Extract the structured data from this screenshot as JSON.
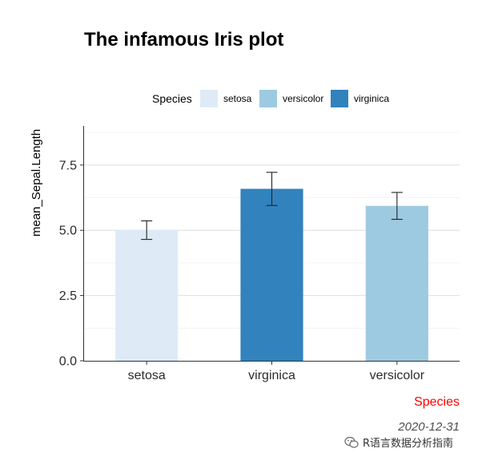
{
  "chart_data": {
    "type": "bar",
    "title": "The infamous Iris plot",
    "xlabel": "Species",
    "ylabel": "mean_Sepal.Length",
    "caption": "2020-12-31",
    "categories": [
      "setosa",
      "virginica",
      "versicolor"
    ],
    "values": [
      5.006,
      6.588,
      5.936
    ],
    "error_low": [
      4.65,
      5.95,
      5.42
    ],
    "error_high": [
      5.36,
      7.22,
      6.45
    ],
    "colors": [
      "#deebf7",
      "#3182bd",
      "#9ecae1"
    ],
    "ylim": [
      0,
      9
    ],
    "yticks": [
      0.0,
      2.5,
      5.0,
      7.5
    ],
    "ytick_labels": [
      "0.0",
      "2.5",
      "5.0",
      "7.5"
    ],
    "grid": true,
    "legend": {
      "title": "Species",
      "position": "top",
      "entries": [
        {
          "label": "setosa",
          "color": "#deebf7"
        },
        {
          "label": "versicolor",
          "color": "#9ecae1"
        },
        {
          "label": "virginica",
          "color": "#3182bd"
        }
      ]
    }
  },
  "watermark": {
    "text": "R语言数据分析指南",
    "icon": "wechat-icon"
  }
}
